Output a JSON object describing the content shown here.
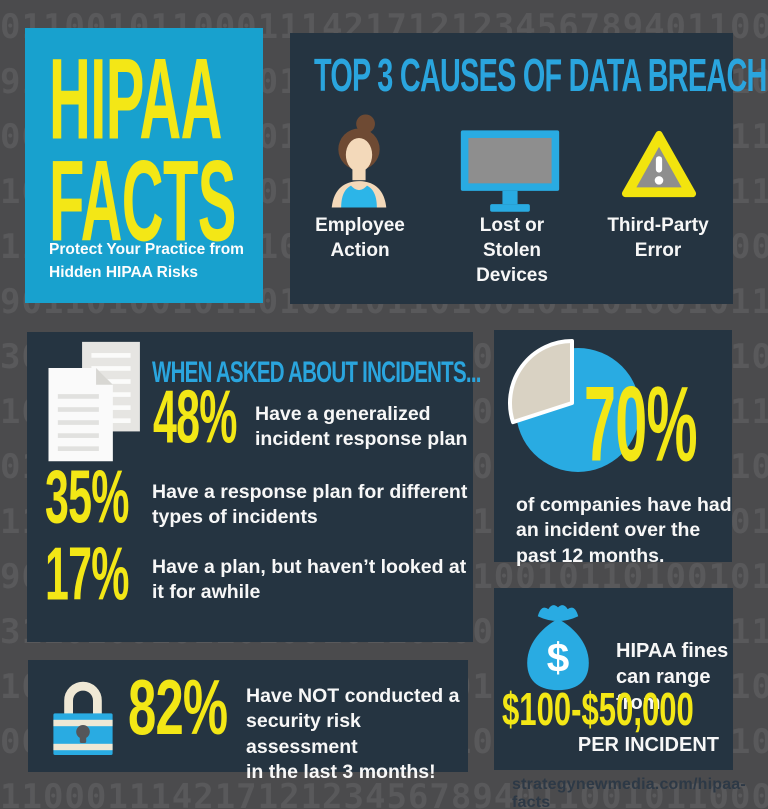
{
  "header": {
    "title_line1": "HIPAA",
    "title_line2": "FACTS",
    "subtitle": "Protect Your Practice from\nHidden HIPAA Risks"
  },
  "causes": {
    "title": "TOP 3 CAUSES OF DATA BREACH",
    "items": [
      {
        "icon": "employee-icon",
        "label": "Employee\nAction"
      },
      {
        "icon": "monitor-icon",
        "label": "Lost or\nStolen\nDevices"
      },
      {
        "icon": "warning-triangle-icon",
        "label": "Third-Party\nError"
      }
    ]
  },
  "incidents": {
    "title": "WHEN ASKED ABOUT INCIDENTS...",
    "stats": [
      {
        "value": "48%",
        "text": "Have a generalized\nincident response plan"
      },
      {
        "value": "35%",
        "text": "Have a response plan for different\ntypes of incidents"
      },
      {
        "value": "17%",
        "text": "Have a plan, but haven’t looked at\nit for awhile"
      }
    ]
  },
  "pie_panel": {
    "value": "70%",
    "text": "of companies have had\nan incident over the\npast 12 months."
  },
  "assessment": {
    "value": "82%",
    "text": "Have NOT conducted a\nsecurity risk assessment\nin the last 3 months!"
  },
  "fines": {
    "intro": "HIPAA fines\ncan range from",
    "amount": "$100-$50,000",
    "unit": "PER INCIDENT"
  },
  "footer": {
    "url": "strategynewmedia.com/hipaa-facts"
  },
  "colors": {
    "background_gray": "#4b4b4d",
    "digit_gray": "#59595b",
    "panel_navy": "#253441",
    "brand_blue": "#18a1ce",
    "icon_blue": "#29abe2",
    "title_blue": "#2aa5de",
    "accent_yellow": "#f3e716",
    "pie_beige": "#d9d2c3",
    "icon_gray": "#8e8e8e"
  },
  "chart_data": {
    "type": "pie",
    "title": "70% of companies have had an incident over the past 12 months.",
    "slices": [
      {
        "label": "70%",
        "value": 70,
        "color": "#29abe2"
      },
      {
        "label": "",
        "value": 30,
        "color": "#d9d2c3"
      }
    ],
    "legend_position": "none",
    "annotation": "70%"
  },
  "background": {
    "rows": [
      "01100101100011142171212345678940110003.13.19",
      "91100101011001011010010110100101101001011.10",
      "00110100101101001011010010110100101101001.23",
      "10110100101101001011010010110100101101001.11",
      "11001011010010110100101101001011010010110.40",
      "90110100101101001011010010110100101101001.10",
      "30101101001011010010110100101101001011010.11",
      "10110100101101001011010010110100101101001.11",
      "01101001011010010110100101101001011010010.20",
      "11010010110100101101001011010010110100101.40",
      "90110100101101001101101001011010010110100.00",
      "31101001011010010110100110110100101101001.00",
      "1011816.555.123 10110010101100110110100101.2",
      "0001141.7.555.1234 011010010110100101101.23",
      "11000111421712123456789401100101100010.1234"
    ]
  }
}
